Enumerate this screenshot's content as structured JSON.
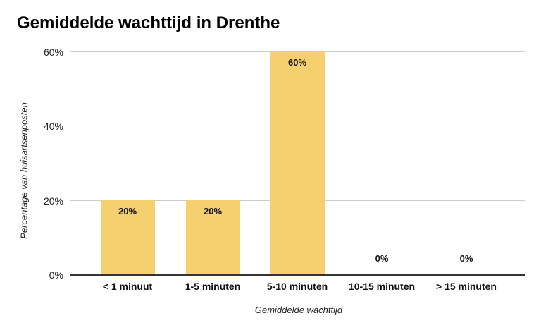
{
  "chart_data": {
    "type": "bar",
    "title": "Gemiddelde wachttijd in Drenthe",
    "xlabel": "Gemiddelde wachttijd",
    "ylabel": "Percentage van huisartsenposten",
    "categories": [
      "< 1 minuut",
      "1-5 minuten",
      "5-10 minuten",
      "10-15 minuten",
      "> 15 minuten"
    ],
    "values": [
      20,
      20,
      60,
      0,
      0
    ],
    "value_labels": [
      "20%",
      "20%",
      "60%",
      "0%",
      "0%"
    ],
    "ylim": [
      0,
      60
    ],
    "yticks": [
      "0%",
      "20%",
      "40%",
      "60%"
    ],
    "ytick_values": [
      0,
      20,
      40,
      60
    ],
    "grid": true,
    "legend": "none",
    "bar_color": "#f6d06f"
  }
}
